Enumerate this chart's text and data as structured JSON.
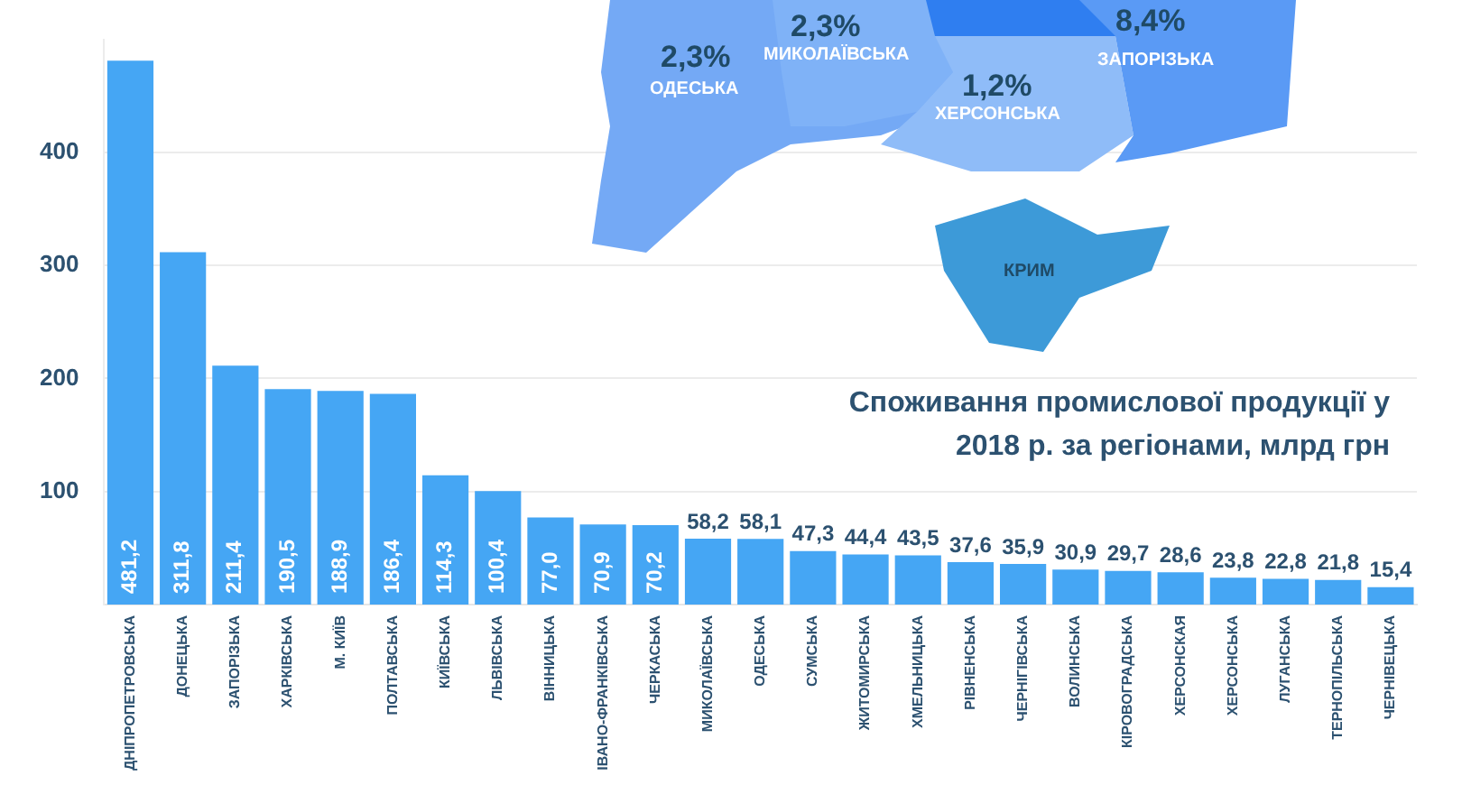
{
  "chart_data": {
    "type": "bar",
    "title": "Споживання промислової продукції у 2018 р. за регіонами, млрд грн",
    "categories": [
      "ДНІПРОПЕТРОВСЬКА",
      "ДОНЕЦЬКА",
      "ЗАПОРІЗЬКА",
      "ХАРКІВСЬКА",
      "М. КИЇВ",
      "ПОЛТАВСЬКА",
      "КИЇВСЬКА",
      "ЛЬВІВСЬКА",
      "ВІННИЦЬКА",
      "ІВАНО-ФРАНКІВСЬКА",
      "ЧЕРКАСЬКА",
      "МИКОЛАЇВСЬКА",
      "ОДЕСЬКА",
      "СУМСЬКА",
      "ЖИТОМИРСЬКА",
      "ХМЕЛЬНИЦЬКА",
      "РІВНЕНСЬКА",
      "ЧЕРНІГІВСЬКА",
      "ВОЛИНСЬКА",
      "КІРОВОГРАДСЬКА",
      "ХЕРСОНСКАЯ",
      "ХЕРСОНСЬКА",
      "ЛУГАНСЬКА",
      "ТЕРНОПІЛЬСЬКА",
      "ЧЕРНІВЕЦЬКА"
    ],
    "values": [
      481.2,
      311.8,
      211.4,
      190.5,
      188.9,
      186.4,
      114.3,
      100.4,
      77.0,
      70.9,
      70.2,
      58.2,
      58.1,
      47.3,
      44.4,
      43.5,
      37.6,
      35.9,
      30.9,
      29.7,
      28.6,
      23.8,
      22.8,
      21.8,
      15.4
    ],
    "value_labels": [
      "481,2",
      "311,8",
      "211,4",
      "190,5",
      "188,9",
      "186,4",
      "114,3",
      "100,4",
      "77,0",
      "70,9",
      "70,2",
      "58,2",
      "58,1",
      "47,3",
      "44,4",
      "43,5",
      "37,6",
      "35,9",
      "30,9",
      "29,7",
      "28,6",
      "23,8",
      "22,8",
      "21,8",
      "15,4"
    ],
    "color": "#45a6f4",
    "ylim": [
      0,
      500
    ],
    "yticks": [
      100,
      200,
      300,
      400
    ],
    "grid": "y",
    "annotations": [
      "2,3%",
      "ОДЕСЬКА",
      "2,3%",
      "МИКОЛАЇВСЬКА",
      "1,2%",
      "ХЕРСОНСЬКА",
      "8,4%",
      "ЗАПОРІЗЬКА",
      "КРИМ"
    ]
  }
}
